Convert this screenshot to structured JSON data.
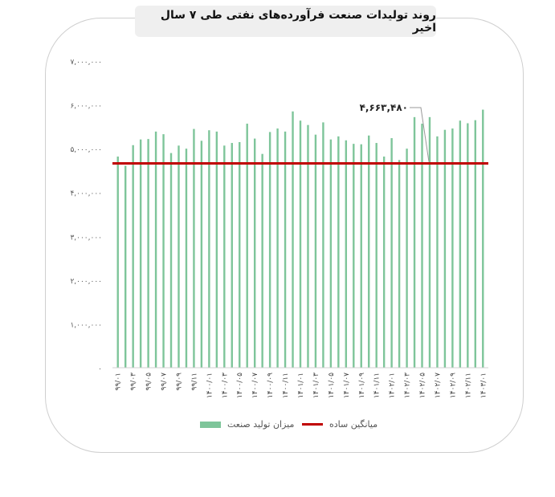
{
  "chart_data": {
    "type": "bar",
    "title": "روند تولیدات صنعت فرآورده‌های نفتی طی ۷ سال اخیر",
    "categories": [
      "۹۹/۰۱",
      "",
      "۹۹/۰۳",
      "",
      "۹۹/۰۵",
      "",
      "۹۹/۰۷",
      "",
      "۹۹/۰۹",
      "",
      "۹۹/۱۱",
      "",
      "۱۴۰۰/۰۱",
      "",
      "۱۴۰۰/۰۳",
      "",
      "۱۴۰۰/۰۵",
      "",
      "۱۴۰۰/۰۷",
      "",
      "۱۴۰۰/۰۹",
      "",
      "۱۴۰۰/۱۱",
      "",
      "۱۴۰۱/۰۱",
      "",
      "۱۴۰۱/۰۳",
      "",
      "۱۴۰۱/۰۵",
      "",
      "۱۴۰۱/۰۷",
      "",
      "۱۴۰۱/۰۹",
      "",
      "۱۴۰۱/۱۱",
      "",
      "۱۴۰۲/۰۱",
      "",
      "۱۴۰۲/۰۳",
      "",
      "۱۴۰۲/۰۵",
      "",
      "۱۴۰۲/۰۷",
      "",
      "۱۴۰۲/۰۹",
      "",
      "۱۴۰۲/۱۱",
      "",
      "۱۴۰۳/۰۱"
    ],
    "series": [
      {
        "name": "میزان تولید صنعت",
        "color": "#7ec59a",
        "values": [
          4820000,
          4610000,
          5080000,
          5210000,
          5220000,
          5390000,
          5330000,
          4900000,
          5070000,
          5000000,
          5450000,
          5180000,
          5420000,
          5390000,
          5070000,
          5130000,
          5150000,
          5570000,
          5230000,
          4880000,
          5380000,
          5460000,
          5390000,
          5850000,
          5640000,
          5540000,
          5320000,
          5600000,
          5210000,
          5280000,
          5190000,
          5110000,
          5100000,
          5300000,
          5130000,
          4820000,
          5240000,
          4740000,
          5000000,
          5720000,
          5570000,
          5720000,
          5280000,
          5430000,
          5460000,
          5640000,
          5580000,
          5650000,
          5890000
        ]
      }
    ],
    "average": {
      "name": "میانگین ساده",
      "value": 4663480,
      "label": "۴,۶۶۳,۴۸۰",
      "color": "#c00000"
    },
    "ylim": [
      0,
      7000000
    ],
    "yticks": [
      {
        "value": 0,
        "label": "۰"
      },
      {
        "value": 1000000,
        "label": "۱,۰۰۰,۰۰۰"
      },
      {
        "value": 2000000,
        "label": "۲,۰۰۰,۰۰۰"
      },
      {
        "value": 3000000,
        "label": "۳,۰۰۰,۰۰۰"
      },
      {
        "value": 4000000,
        "label": "۴,۰۰۰,۰۰۰"
      },
      {
        "value": 5000000,
        "label": "۵,۰۰۰,۰۰۰"
      },
      {
        "value": 6000000,
        "label": "۶,۰۰۰,۰۰۰"
      },
      {
        "value": 7000000,
        "label": "۷,۰۰۰,۰۰۰"
      }
    ],
    "grid": false,
    "legend_position": "bottom"
  }
}
